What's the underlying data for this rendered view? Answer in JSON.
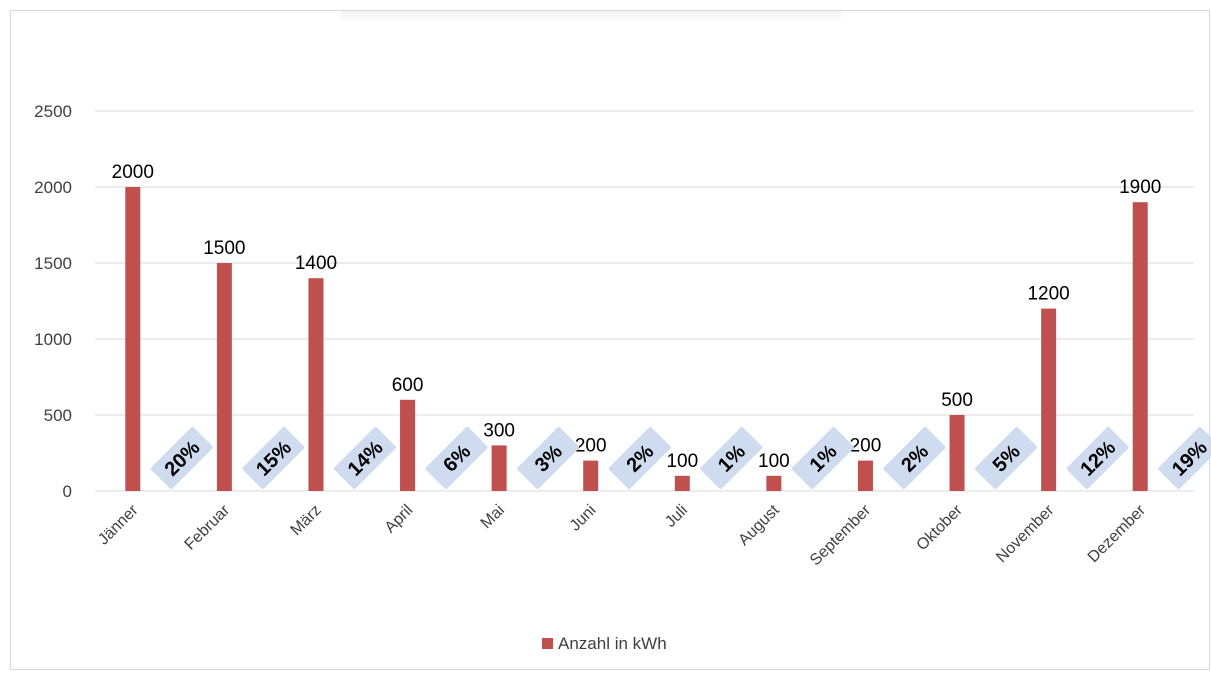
{
  "chart_data": {
    "type": "bar",
    "title": "",
    "xlabel": "",
    "ylabel": "",
    "ylim": [
      0,
      2500
    ],
    "yticks": [
      0,
      500,
      1000,
      1500,
      2000,
      2500
    ],
    "grid": true,
    "legend_position": "bottom",
    "categories": [
      "Jänner",
      "Februar",
      "März",
      "April",
      "Mai",
      "Juni",
      "Juli",
      "August",
      "September",
      "Oktober",
      "November",
      "Dezember"
    ],
    "series": [
      {
        "name": "Anzahl in kWh",
        "color": "#c0504d",
        "values": [
          2000,
          1500,
          1400,
          600,
          300,
          200,
          100,
          100,
          200,
          500,
          1200,
          1900
        ],
        "value_labels": [
          "2000",
          "1500",
          "1400",
          "600",
          "300",
          "200",
          "100",
          "100",
          "200",
          "500",
          "1200",
          "1900"
        ],
        "percent_labels": [
          "20%",
          "15%",
          "14%",
          "6%",
          "3%",
          "2%",
          "1%",
          "1%",
          "2%",
          "5%",
          "12%",
          "19%"
        ]
      }
    ],
    "percent_label_color": "#cfdcf0"
  }
}
